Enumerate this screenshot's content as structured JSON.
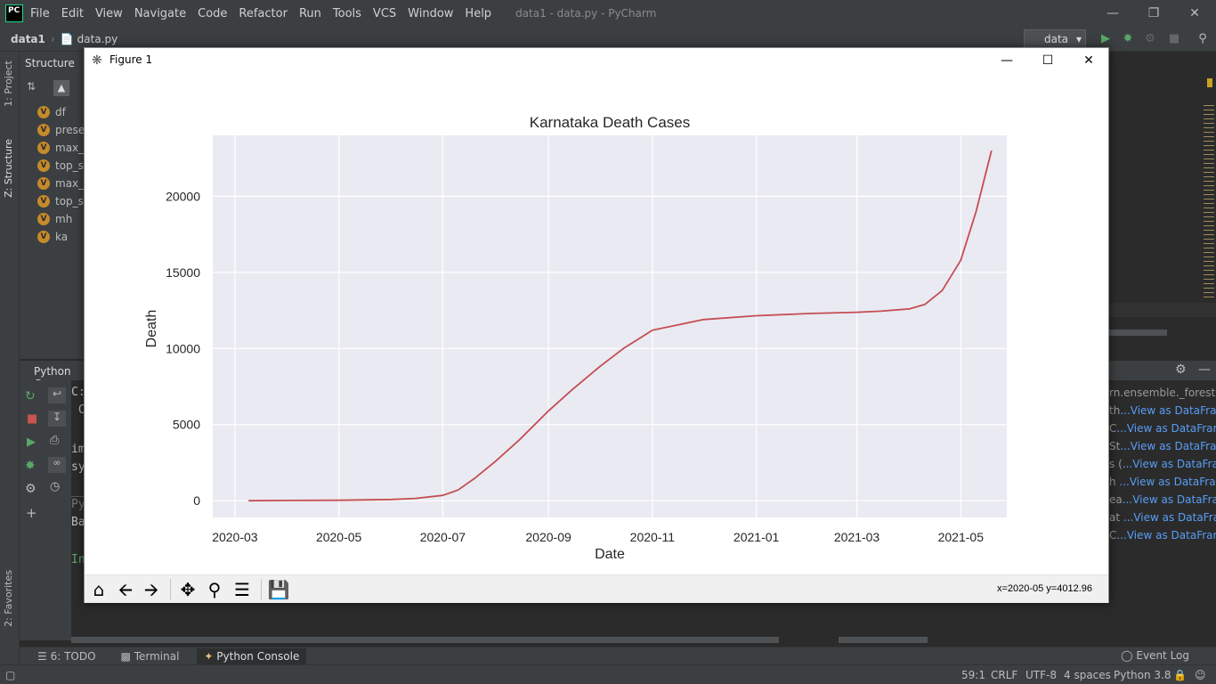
{
  "ide": {
    "logo": "PC",
    "menu": [
      "File",
      "Edit",
      "View",
      "Navigate",
      "Code",
      "Refactor",
      "Run",
      "Tools",
      "VCS",
      "Window",
      "Help"
    ],
    "window_title": "data1 - data.py - PyCharm",
    "breadcrumb": {
      "project": "data1",
      "file": "data.py"
    },
    "run_config": "data"
  },
  "left_tabs": {
    "project": "1: Project",
    "structure": "Z: Structure",
    "favorites": "2: Favorites"
  },
  "structure": {
    "title": "Structure",
    "badge": "V",
    "items": [
      "df",
      "preser",
      "max_c",
      "top_st",
      "max_c",
      "top_st",
      "mh",
      "ka"
    ]
  },
  "console": {
    "title": "Python Co",
    "lines": [
      "C:",
      " C",
      "",
      "im",
      "sy",
      "",
      "Py",
      "Ba",
      "",
      "In"
    ]
  },
  "variables": {
    "rows": [
      {
        "prefix": "rn.ensemble._forest.R",
        "action": ""
      },
      {
        "prefix": "th",
        "action": "...View as DataFrame"
      },
      {
        "prefix": " C",
        "action": "...View as DataFrame"
      },
      {
        "prefix": "St",
        "action": "...View as DataFrame"
      },
      {
        "prefix": "s (",
        "action": "...View as DataFrame"
      },
      {
        "prefix": "h ",
        "action": "...View as DataFrame"
      },
      {
        "prefix": "ea",
        "action": "...View as DataFrame"
      },
      {
        "prefix": "at ",
        "action": "...View as DataFrame"
      },
      {
        "prefix": " C",
        "action": "...View as DataFrame"
      }
    ]
  },
  "bottom_tabs": {
    "todo": "6: TODO",
    "terminal": "Terminal",
    "console": "Python Console",
    "event_log": "Event Log"
  },
  "status": {
    "position": "59:1",
    "line_sep": "CRLF",
    "encoding": "UTF-8",
    "indent": "4 spaces",
    "interpreter": "Python 3.8"
  },
  "figure": {
    "window_title": "Figure 1",
    "coord_readout": "x=2020-05 y=4012.96"
  },
  "chart_data": {
    "type": "line",
    "title": "Karnataka Death Cases",
    "xlabel": "Date",
    "ylabel": "Death",
    "x_ticks": [
      "2020-03",
      "2020-05",
      "2020-07",
      "2020-09",
      "2020-11",
      "2021-01",
      "2021-03",
      "2021-05"
    ],
    "y_ticks": [
      0,
      5000,
      10000,
      15000,
      20000
    ],
    "xlim": [
      "2020-02-17",
      "2021-05-28"
    ],
    "ylim": [
      -1100,
      24000
    ],
    "grid": true,
    "line_color": "#c44e52",
    "series": [
      {
        "x": [
          "2020-03-09",
          "2020-04-01",
          "2020-05-01",
          "2020-06-01",
          "2020-06-15",
          "2020-07-01",
          "2020-07-10",
          "2020-07-20",
          "2020-08-01",
          "2020-08-15",
          "2020-09-01",
          "2020-09-15",
          "2020-10-01",
          "2020-10-15",
          "2020-11-01",
          "2020-12-01",
          "2021-01-01",
          "2021-02-01",
          "2021-03-01",
          "2021-03-15",
          "2021-04-01",
          "2021-04-10",
          "2021-04-20",
          "2021-05-01",
          "2021-05-10",
          "2021-05-19"
        ],
        "y": [
          0,
          20,
          30,
          80,
          150,
          350,
          700,
          1500,
          2600,
          4000,
          5900,
          7300,
          8800,
          10000,
          11200,
          11900,
          12150,
          12300,
          12380,
          12450,
          12600,
          12900,
          13800,
          15800,
          19000,
          23000
        ]
      }
    ]
  }
}
